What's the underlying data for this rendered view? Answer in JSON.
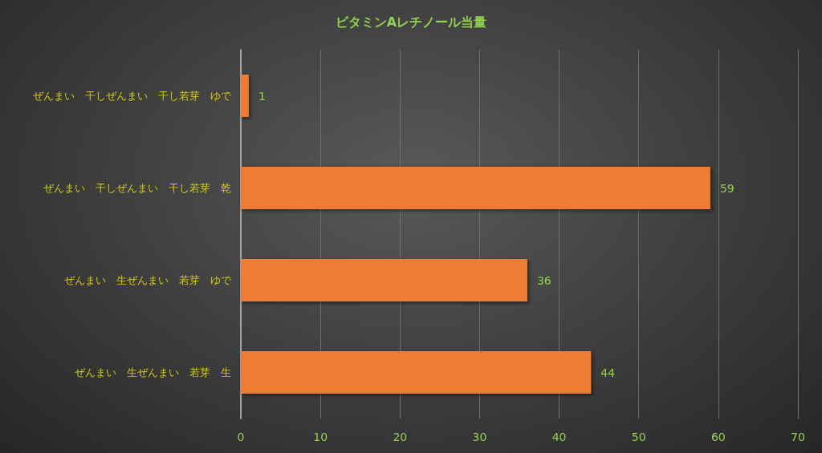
{
  "chart_data": {
    "type": "bar",
    "orientation": "horizontal",
    "title": "ビタミンAレチノール当量",
    "categories": [
      "ぜんまい　干しぜんまい　干し若芽　ゆで",
      "ぜんまい　干しぜんまい　干し若芽　乾",
      "ぜんまい　生ぜんまい　若芽　ゆで",
      "ぜんまい　生ぜんまい　若芽　生"
    ],
    "values": [
      1,
      59,
      36,
      44
    ],
    "color": "#ed7d31",
    "xlim": [
      0,
      70
    ],
    "xticks": [
      0,
      10,
      20,
      30,
      40,
      50,
      60,
      70
    ],
    "grid": "x",
    "data_labels": true
  }
}
